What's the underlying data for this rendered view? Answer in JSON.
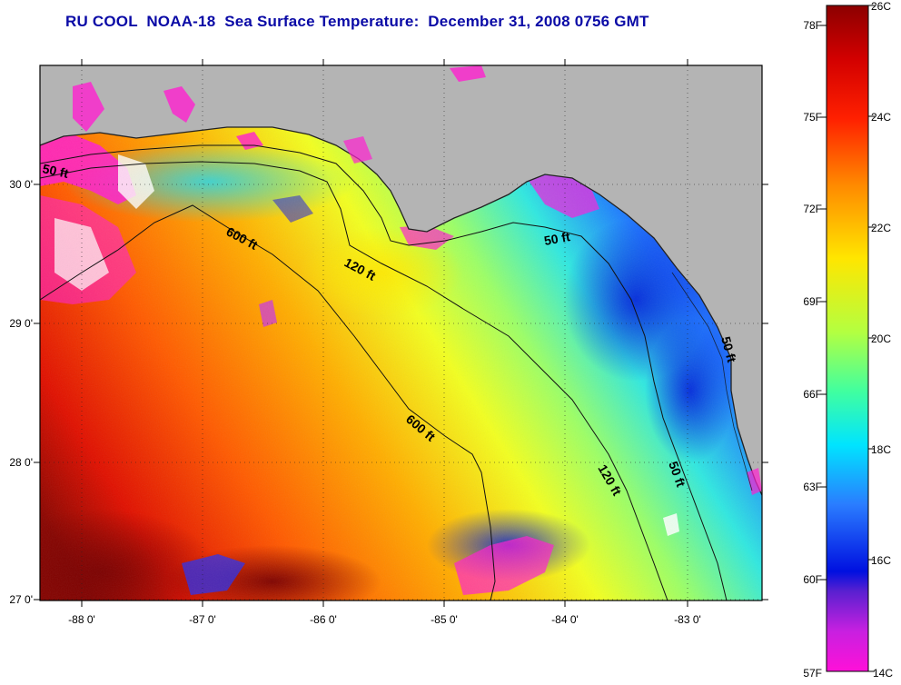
{
  "title": "RU COOL  NOAA-18  Sea Surface Temperature:  December 31, 2008 0756 GMT",
  "map": {
    "lon_ticks": [
      "-88 0'",
      "-87 0'",
      "-86 0'",
      "-85 0'",
      "-84 0'",
      "-83 0'"
    ],
    "lat_ticks": [
      "27 0'",
      "28 0'",
      "29 0'",
      "30 0'"
    ],
    "lon_range": [
      -88.35,
      -82.4
    ],
    "lat_range": [
      26.98,
      30.85
    ],
    "grid": "dotted",
    "land_color": "#b4b4b4",
    "contours": [
      {
        "label": "50 ft"
      },
      {
        "label": "600 ft"
      },
      {
        "label": "120 ft"
      },
      {
        "label": "50 ft"
      },
      {
        "label": "600 ft"
      },
      {
        "label": "120 ft"
      },
      {
        "label": "50 ft"
      },
      {
        "label": "50 ft"
      }
    ]
  },
  "colorbar": {
    "f_labels": [
      "78F",
      "75F",
      "72F",
      "69F",
      "66F",
      "63F",
      "60F",
      "57F"
    ],
    "c_labels": [
      "26C",
      "24C",
      "22C",
      "20C",
      "18C",
      "16C",
      "14C"
    ],
    "range_c": [
      14,
      26
    ]
  }
}
